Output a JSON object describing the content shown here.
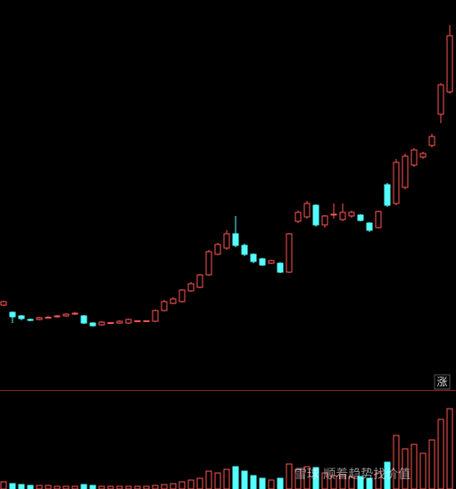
{
  "chart_data": {
    "type": "candlestick",
    "open": [
      98,
      90,
      86,
      82,
      82,
      84,
      85,
      86,
      88,
      86,
      78,
      76,
      78,
      78,
      78,
      80,
      80,
      80,
      92,
      100,
      102,
      114,
      118,
      132,
      155,
      162,
      178,
      165,
      155,
      150,
      145,
      145,
      135,
      192,
      197,
      210,
      188,
      199,
      194,
      198,
      199,
      190,
      185,
      233,
      212,
      230,
      255,
      264,
      277,
      312,
      337
    ],
    "high": [
      103,
      91,
      87,
      83,
      85,
      86,
      87,
      89,
      90,
      87,
      79,
      80,
      79,
      81,
      83,
      81,
      81,
      93,
      104,
      107,
      116,
      124,
      133,
      160,
      168,
      182,
      198,
      167,
      156,
      151,
      149,
      146,
      179,
      204,
      215,
      211,
      199,
      212,
      212,
      204,
      200,
      191,
      204,
      235,
      262,
      268,
      274,
      270,
      290,
      347,
      412
    ],
    "low": [
      97,
      78,
      81,
      80,
      81,
      83,
      84,
      85,
      87,
      77,
      74,
      75,
      77,
      77,
      77,
      79,
      79,
      79,
      91,
      99,
      101,
      113,
      117,
      131,
      154,
      160,
      163,
      153,
      145,
      142,
      144,
      134,
      134,
      190,
      195,
      186,
      185,
      195,
      192,
      196,
      192,
      180,
      184,
      208,
      210,
      228,
      253,
      262,
      275,
      302,
      335
    ],
    "close": [
      102,
      85,
      83,
      81,
      84,
      84.5,
      86,
      88,
      89,
      78,
      75,
      79,
      78.5,
      80,
      82,
      80.5,
      80.5,
      92,
      102,
      105,
      115,
      122,
      132,
      158,
      166,
      178,
      165,
      155,
      147,
      143,
      148,
      135,
      178,
      202,
      212,
      188,
      198,
      200,
      202,
      202,
      193,
      182,
      203,
      210,
      258,
      265,
      272,
      268,
      287,
      345,
      400
    ],
    "volume": [
      8,
      6,
      5,
      4,
      4,
      4,
      3,
      3,
      3,
      5,
      4,
      3,
      3,
      3,
      3,
      3,
      3,
      4,
      5,
      6,
      8,
      10,
      12,
      20,
      18,
      22,
      25,
      20,
      15,
      12,
      10,
      12,
      28,
      22,
      25,
      24,
      18,
      15,
      16,
      14,
      14,
      12,
      18,
      30,
      60,
      45,
      50,
      40,
      55,
      78,
      90
    ],
    "ylim": [
      0,
      440
    ],
    "volume_ylim": [
      0,
      110
    ],
    "up_color": "#ff5454",
    "down_color": "#54ffff",
    "label": "涨",
    "watermark": "雪球 顺着趋势找价值"
  }
}
